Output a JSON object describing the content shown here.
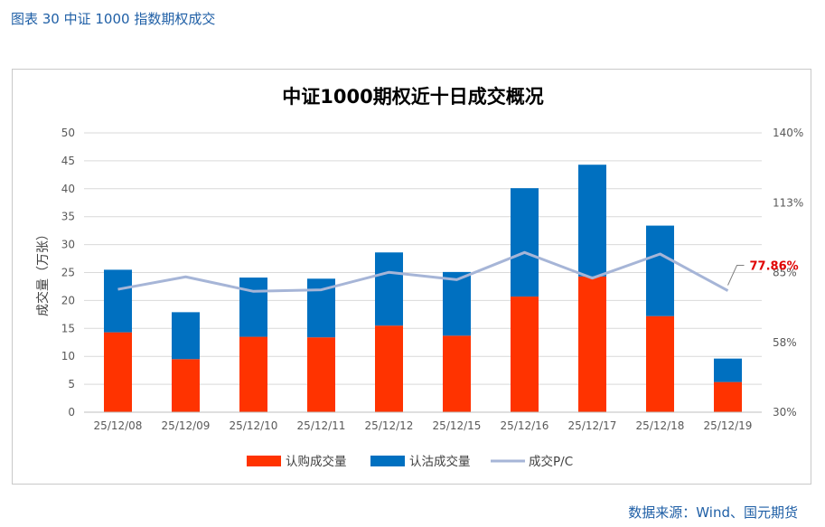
{
  "caption": "图表 30 中证 1000 指数期权成交",
  "source": "数据来源：Wind、国元期货",
  "chart_data": {
    "type": "bar",
    "stacked": true,
    "title": "中证1000期权近十日成交概况",
    "ylabel": "成交量（万张）",
    "ylim": [
      0,
      50
    ],
    "yticks": [
      "0",
      "5",
      "10",
      "15",
      "20",
      "25",
      "30",
      "35",
      "40",
      "45",
      "50"
    ],
    "y2lim": [
      30,
      140
    ],
    "y2ticks": [
      "30%",
      "58%",
      "85%",
      "113%",
      "140%"
    ],
    "categories": [
      "25/12/08",
      "25/12/09",
      "25/12/10",
      "25/12/11",
      "25/12/12",
      "25/12/15",
      "25/12/16",
      "25/12/17",
      "25/12/18",
      "25/12/19"
    ],
    "series": [
      {
        "name": "认购成交量",
        "type": "bar",
        "axis": "left",
        "color": "#ff3300",
        "values": [
          14.3,
          9.5,
          13.5,
          13.4,
          15.5,
          13.7,
          20.7,
          24.3,
          17.2,
          5.4
        ]
      },
      {
        "name": "认沽成交量",
        "type": "bar",
        "axis": "left",
        "color": "#0070c0",
        "values": [
          11.2,
          8.4,
          10.6,
          10.5,
          13.1,
          11.4,
          19.4,
          20.0,
          16.2,
          4.2
        ]
      },
      {
        "name": "成交P/C",
        "type": "line",
        "axis": "right",
        "color": "#a6b5d7",
        "values": [
          78.4,
          83.3,
          77.6,
          78.2,
          85.1,
          82.2,
          92.9,
          82.8,
          92.3,
          77.86
        ]
      }
    ],
    "annotation": "77.86%"
  }
}
